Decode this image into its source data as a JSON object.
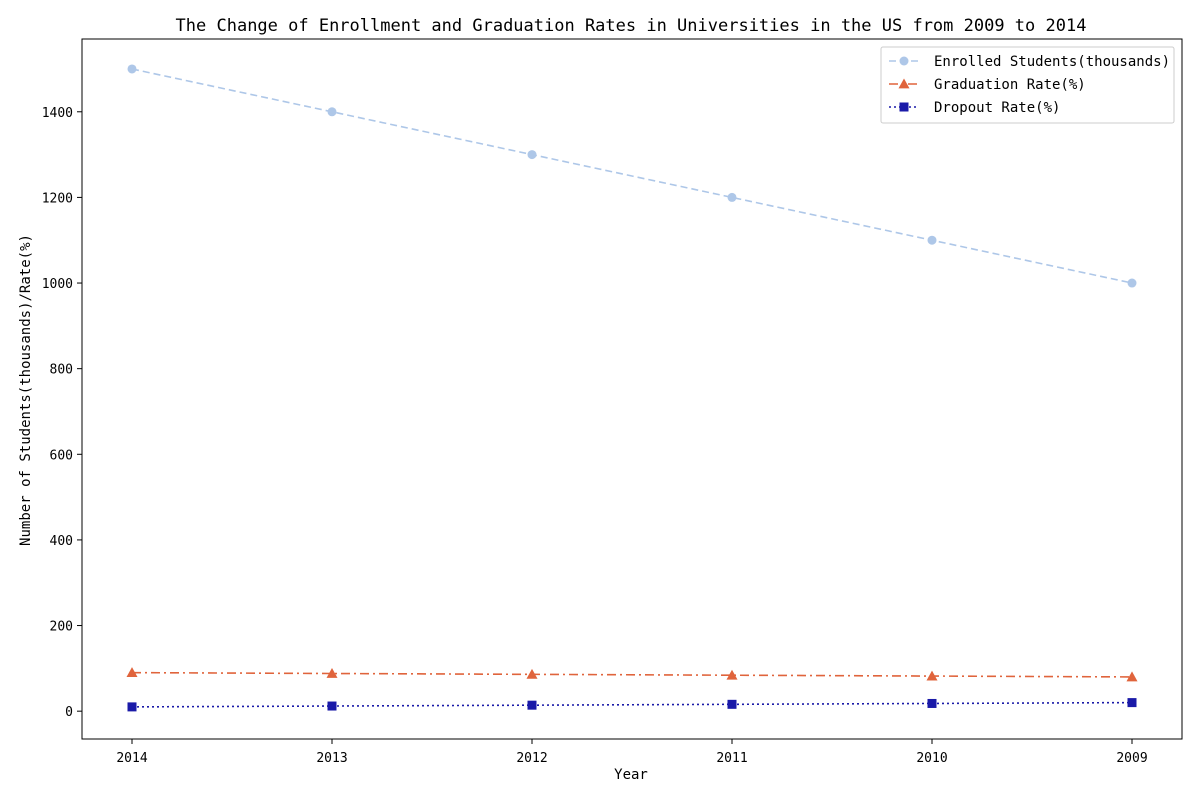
{
  "chart_data": {
    "type": "line",
    "title": "The Change of Enrollment and Graduation Rates in Universities in the US from 2009 to 2014",
    "xlabel": "Year",
    "ylabel": "Number of Students(thousands)/Rate(%)",
    "categories": [
      "2014",
      "2013",
      "2012",
      "2011",
      "2010",
      "2009"
    ],
    "ylim": [
      -65,
      1570
    ],
    "yticks": [
      0,
      200,
      400,
      600,
      800,
      1000,
      1200,
      1400
    ],
    "grid": false,
    "legend_position": "top-right",
    "series": [
      {
        "name": "Enrolled Students(thousands)",
        "values": [
          1500,
          1400,
          1300,
          1200,
          1100,
          1000
        ],
        "color": "#aec7e8",
        "marker": "circle",
        "dash": "dashed"
      },
      {
        "name": "Graduation Rate(%)",
        "values": [
          90,
          88,
          86,
          84,
          82,
          80
        ],
        "color": "#e0643c",
        "marker": "triangle",
        "dash": "dashdot"
      },
      {
        "name": "Dropout Rate(%)",
        "values": [
          10,
          12,
          14,
          16,
          18,
          20
        ],
        "color": "#1a1aa8",
        "marker": "square",
        "dash": "dotted"
      }
    ]
  }
}
